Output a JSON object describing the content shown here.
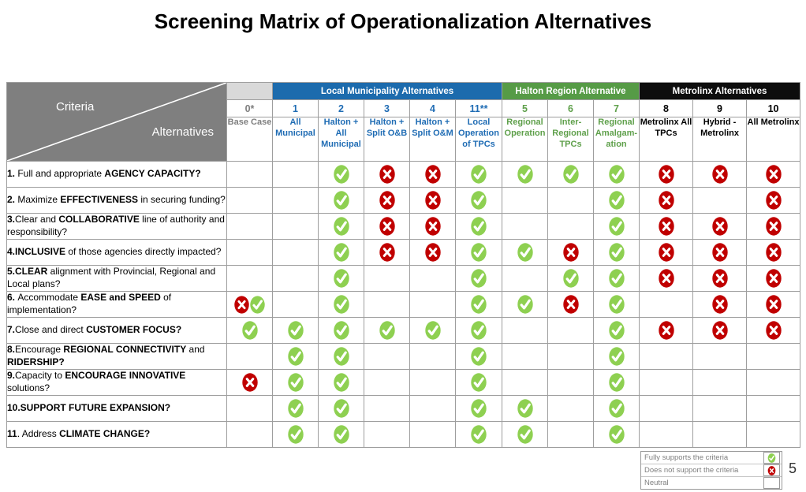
{
  "page": {
    "title": "Screening Matrix of Operationalization Alternatives",
    "page_number": "5"
  },
  "colors": {
    "check_green": "#8ed051",
    "x_red": "#c00000",
    "band_base_bg": "#d9d9d9",
    "band_local_bg": "#1c6bad",
    "band_halton_bg": "#569b46",
    "band_metrolinx_bg": "#0d0d0d",
    "text_base": "#7f7f7f",
    "text_local": "#1f6cb4",
    "text_halton": "#5fa04b",
    "text_metrolinx": "#000000"
  },
  "matrix": {
    "corner": {
      "criteria": "Criteria",
      "alternatives": "Alternatives"
    },
    "groups": [
      {
        "id": "base",
        "label": "",
        "span": 1
      },
      {
        "id": "local",
        "label": "Local Municipality Alternatives",
        "span": 5
      },
      {
        "id": "halton",
        "label": "Halton Region Alternative",
        "span": 3
      },
      {
        "id": "metrolinx",
        "label": "Metrolinx Alternatives",
        "span": 3
      }
    ],
    "columns": [
      {
        "number": "0*",
        "name": "Base Case",
        "group": "base"
      },
      {
        "number": "1",
        "name": "All Municipal",
        "group": "local"
      },
      {
        "number": "2",
        "name": "Halton + All Municipal",
        "group": "local"
      },
      {
        "number": "3",
        "name": "Halton + Split O&B",
        "group": "local"
      },
      {
        "number": "4",
        "name": "Halton + Split O&M",
        "group": "local"
      },
      {
        "number": "11**",
        "name": "Local Operation of TPCs",
        "group": "local"
      },
      {
        "number": "5",
        "name": "Regional Operation",
        "group": "halton"
      },
      {
        "number": "6",
        "name": "Inter-Regional TPCs",
        "group": "halton"
      },
      {
        "number": "7",
        "name": "Regional Amalgam-ation",
        "group": "halton"
      },
      {
        "number": "8",
        "name": "Metrolinx All TPCs",
        "group": "metrolinx"
      },
      {
        "number": "9",
        "name": "Hybrid - Metrolinx",
        "group": "metrolinx"
      },
      {
        "number": "10",
        "name": "All Metrolinx",
        "group": "metrolinx"
      }
    ],
    "rows": [
      {
        "label": [
          [
            "1. ",
            1
          ],
          [
            "Full and appropriate ",
            0
          ],
          [
            "AGENCY CAPACITY?",
            1
          ]
        ],
        "cells": [
          "",
          "",
          "c",
          "x",
          "x",
          "c",
          "c",
          "c",
          "c",
          "x",
          "x",
          "x"
        ]
      },
      {
        "label": [
          [
            "2. ",
            1
          ],
          [
            "Maximize ",
            0
          ],
          [
            "EFFECTIVENESS",
            1
          ],
          [
            " in securing funding?",
            0
          ]
        ],
        "cells": [
          "",
          "",
          "c",
          "x",
          "x",
          "c",
          "",
          "",
          "c",
          "x",
          "",
          "x"
        ]
      },
      {
        "label": [
          [
            "3.",
            1
          ],
          [
            "Clear and ",
            0
          ],
          [
            "COLLABORATIVE",
            1
          ],
          [
            " line of authority and responsibility?",
            0
          ]
        ],
        "cells": [
          "",
          "",
          "c",
          "x",
          "x",
          "c",
          "",
          "",
          "c",
          "x",
          "x",
          "x"
        ]
      },
      {
        "label": [
          [
            "4.INCLUSIVE",
            1
          ],
          [
            " of those agencies directly impacted?",
            0
          ]
        ],
        "cells": [
          "",
          "",
          "c",
          "x",
          "x",
          "c",
          "c",
          "x",
          "c",
          "x",
          "x",
          "x"
        ]
      },
      {
        "label": [
          [
            "5.CLEAR",
            1
          ],
          [
            " alignment with Provincial, Regional and Local plans?",
            0
          ]
        ],
        "cells": [
          "",
          "",
          "c",
          "",
          "",
          "c",
          "",
          "c",
          "c",
          "x",
          "x",
          "x"
        ]
      },
      {
        "label": [
          [
            "6. ",
            1
          ],
          [
            "Accommodate ",
            0
          ],
          [
            "EASE and SPEED",
            1
          ],
          [
            " of implementation?",
            0
          ]
        ],
        "cells": [
          "xc",
          "",
          "c",
          "",
          "",
          "c",
          "c",
          "x",
          "c",
          "",
          "x",
          "x"
        ]
      },
      {
        "label": [
          [
            "7.",
            1
          ],
          [
            "Close and direct ",
            0
          ],
          [
            "CUSTOMER FOCUS?",
            1
          ]
        ],
        "cells": [
          "c",
          "c",
          "c",
          "c",
          "c",
          "c",
          "",
          "",
          "c",
          "x",
          "x",
          "x"
        ]
      },
      {
        "label": [
          [
            "8.",
            1
          ],
          [
            "Encourage ",
            0
          ],
          [
            "REGIONAL CONNECTIVITY",
            1
          ],
          [
            " and ",
            0
          ],
          [
            "RIDERSHIP?",
            1
          ]
        ],
        "cells": [
          "",
          "c",
          "c",
          "",
          "",
          "c",
          "",
          "",
          "c",
          "",
          "",
          ""
        ]
      },
      {
        "label": [
          [
            "9.",
            1
          ],
          [
            "Capacity to ",
            0
          ],
          [
            "ENCOURAGE INNOVATIVE",
            1
          ],
          [
            " solutions?",
            0
          ]
        ],
        "cells": [
          "x",
          "c",
          "c",
          "",
          "",
          "c",
          "",
          "",
          "c",
          "",
          "",
          ""
        ]
      },
      {
        "label": [
          [
            "10.SUPPORT FUTURE EXPANSION?",
            1
          ]
        ],
        "cells": [
          "",
          "c",
          "c",
          "",
          "",
          "c",
          "c",
          "",
          "c",
          "",
          "",
          ""
        ]
      },
      {
        "label": [
          [
            "11",
            1
          ],
          [
            ". Address ",
            0
          ],
          [
            "CLIMATE CHANGE?",
            1
          ]
        ],
        "cells": [
          "",
          "c",
          "c",
          "",
          "",
          "c",
          "c",
          "",
          "c",
          "",
          "",
          ""
        ]
      }
    ]
  },
  "legend": {
    "items": [
      {
        "label": "Fully supports the criteria",
        "icon": "check"
      },
      {
        "label": "Does not support the criteria",
        "icon": "x"
      },
      {
        "label": "Neutral",
        "icon": "none"
      }
    ]
  }
}
